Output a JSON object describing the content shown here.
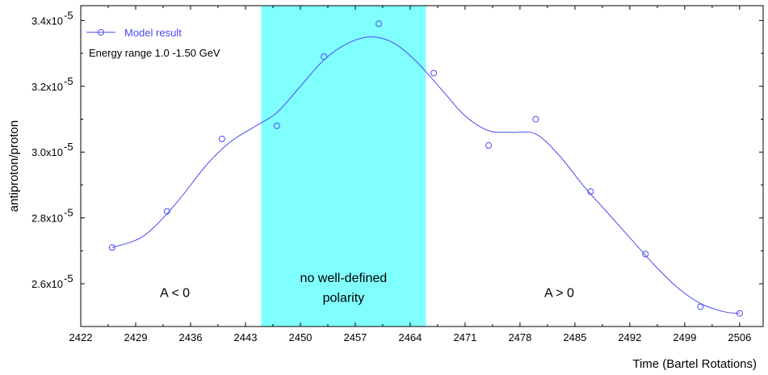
{
  "chart_data": {
    "type": "line",
    "xlabel": "Time (Bartel Rotations)",
    "ylabel": "antiproton/proton",
    "xlim": [
      2422,
      2509
    ],
    "ylim": [
      2.47,
      3.445
    ],
    "y_scale_exponent": "-5",
    "x_ticks": [
      2422,
      2429,
      2436,
      2443,
      2450,
      2457,
      2464,
      2471,
      2478,
      2485,
      2492,
      2499,
      2506
    ],
    "y_ticks": [
      {
        "value": 2.6,
        "label": "2.6x10",
        "exp": "-5"
      },
      {
        "value": 2.8,
        "label": "2.8x10",
        "exp": "-5"
      },
      {
        "value": 3.0,
        "label": "3.0x10",
        "exp": "-5"
      },
      {
        "value": 3.2,
        "label": "3.2x10",
        "exp": "-5"
      },
      {
        "value": 3.4,
        "label": "3.4x10",
        "exp": "-5"
      }
    ],
    "series": [
      {
        "name": "Model result",
        "color": "#4a4af0",
        "marker": "open-circle",
        "points": [
          {
            "x": 2426,
            "y": 2.71
          },
          {
            "x": 2433,
            "y": 2.82
          },
          {
            "x": 2440,
            "y": 3.04
          },
          {
            "x": 2447,
            "y": 3.08
          },
          {
            "x": 2453,
            "y": 3.29
          },
          {
            "x": 2460,
            "y": 3.39
          },
          {
            "x": 2467,
            "y": 3.24
          },
          {
            "x": 2474,
            "y": 3.02
          },
          {
            "x": 2480,
            "y": 3.1
          },
          {
            "x": 2487,
            "y": 2.88
          },
          {
            "x": 2494,
            "y": 2.69
          },
          {
            "x": 2501,
            "y": 2.53
          },
          {
            "x": 2506,
            "y": 2.51
          }
        ],
        "smooth_curve": [
          [
            2426,
            2.71
          ],
          [
            2430,
            2.745
          ],
          [
            2434,
            2.84
          ],
          [
            2438,
            2.96
          ],
          [
            2441,
            3.03
          ],
          [
            2444,
            3.075
          ],
          [
            2447,
            3.12
          ],
          [
            2450,
            3.2
          ],
          [
            2453,
            3.28
          ],
          [
            2456,
            3.33
          ],
          [
            2459,
            3.35
          ],
          [
            2462,
            3.33
          ],
          [
            2465,
            3.27
          ],
          [
            2468,
            3.19
          ],
          [
            2471,
            3.11
          ],
          [
            2474,
            3.065
          ],
          [
            2477,
            3.06
          ],
          [
            2480,
            3.055
          ],
          [
            2483,
            2.99
          ],
          [
            2486,
            2.9
          ],
          [
            2489,
            2.82
          ],
          [
            2492,
            2.74
          ],
          [
            2495,
            2.66
          ],
          [
            2498,
            2.59
          ],
          [
            2501,
            2.54
          ],
          [
            2504,
            2.515
          ],
          [
            2506,
            2.51
          ]
        ]
      }
    ],
    "shaded_region": {
      "x_start": 2445,
      "x_end": 2466,
      "color": "#80ffff"
    },
    "region_labels": [
      {
        "text": "A < 0",
        "x": 2434,
        "y": 2.56
      },
      {
        "text": "no well-defined",
        "x": 2455.5,
        "y": 2.605
      },
      {
        "text": "polarity",
        "x": 2455.5,
        "y": 2.545
      },
      {
        "text": "A > 0",
        "x": 2483,
        "y": 2.56
      }
    ],
    "legend": {
      "position": "top-left",
      "entries": [
        {
          "label": "Model result",
          "color": "#4a4af0"
        }
      ],
      "annotation": "Energy range 1.0 -1.50 GeV"
    }
  }
}
